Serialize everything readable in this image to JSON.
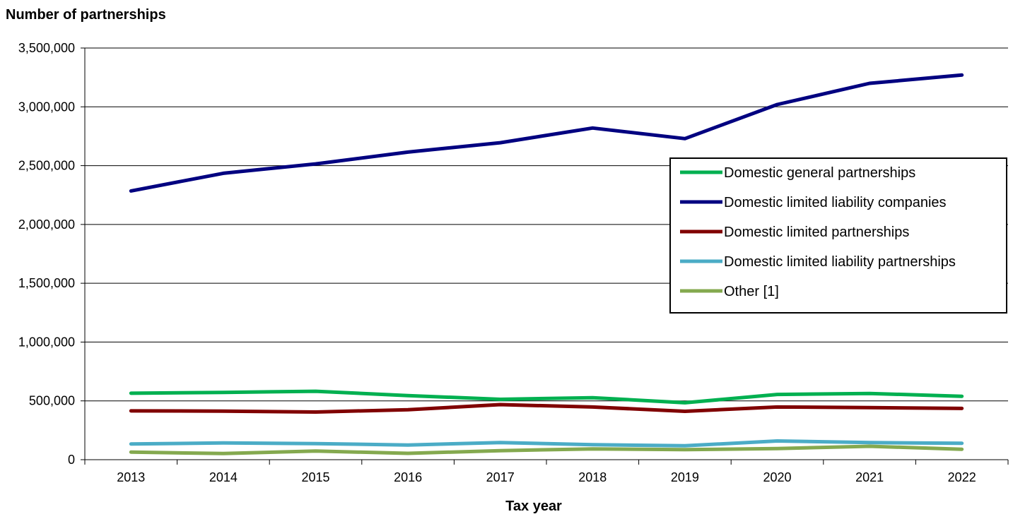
{
  "chart_data": {
    "type": "line",
    "title": "",
    "ylabel": "Number of partnerships",
    "xlabel": "Tax year",
    "x": [
      "2013",
      "2014",
      "2015",
      "2016",
      "2017",
      "2018",
      "2019",
      "2020",
      "2021",
      "2022"
    ],
    "ylim": [
      0,
      3500000
    ],
    "yticks": [
      0,
      500000,
      1000000,
      1500000,
      2000000,
      2500000,
      3000000,
      3500000
    ],
    "ytick_labels": [
      "0",
      "500,000",
      "1,000,000",
      "1,500,000",
      "2,000,000",
      "2,500,000",
      "3,000,000",
      "3,500,000"
    ],
    "grid": "horizontal",
    "legend_position": "right",
    "series": [
      {
        "name": "Domestic general partnerships",
        "color": "#00b050",
        "values": [
          565000,
          572000,
          582000,
          545000,
          513000,
          527000,
          484000,
          555000,
          563000,
          539000
        ]
      },
      {
        "name": "Domestic limited liability companies",
        "color": "#000080",
        "values": [
          2285000,
          2435000,
          2515000,
          2615000,
          2695000,
          2820000,
          2730000,
          3020000,
          3200000,
          3270000
        ]
      },
      {
        "name": "Domestic limited partnerships",
        "color": "#800000",
        "values": [
          415000,
          413000,
          405000,
          425000,
          468000,
          448000,
          411000,
          448000,
          443000,
          436000
        ]
      },
      {
        "name": "Domestic limited liability partnerships",
        "color": "#4bacc6",
        "values": [
          134000,
          142000,
          137000,
          125000,
          146000,
          127000,
          118000,
          159000,
          145000,
          140000
        ]
      },
      {
        "name": "Other [1]",
        "color": "#84a94f",
        "values": [
          64000,
          52000,
          73000,
          54000,
          77000,
          92000,
          85000,
          95000,
          114000,
          89000
        ]
      }
    ]
  }
}
